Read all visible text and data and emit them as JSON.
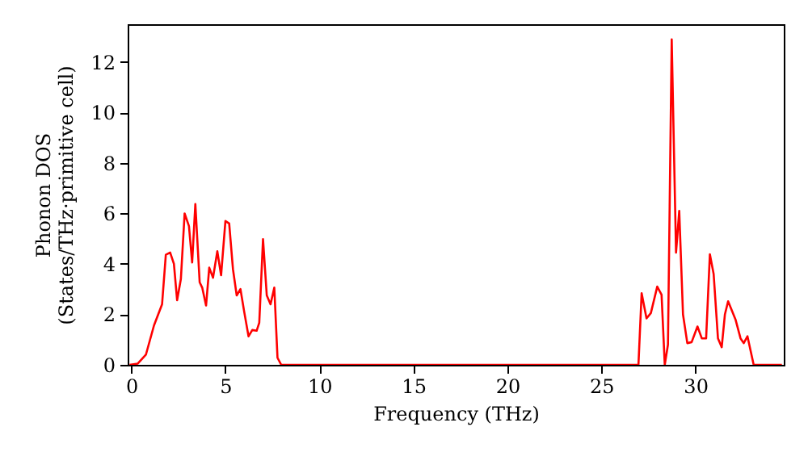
{
  "chart_data": {
    "type": "line",
    "xlabel": "Frequency (THz)",
    "ylabel": "Phonon DOS\n(States/THz·primitive cell)",
    "x": [
      -0.1,
      0.34,
      0.77,
      1.2,
      1.63,
      1.83,
      2.06,
      2.26,
      2.43,
      2.63,
      2.83,
      3.06,
      3.23,
      3.4,
      3.63,
      3.77,
      3.97,
      4.14,
      4.34,
      4.57,
      4.77,
      5.0,
      5.2,
      5.4,
      5.6,
      5.8,
      6.0,
      6.23,
      6.43,
      6.66,
      6.8,
      7.0,
      7.2,
      7.4,
      7.6,
      7.77,
      7.97,
      26.97,
      27.14,
      27.4,
      27.63,
      27.97,
      28.2,
      28.37,
      28.54,
      28.74,
      28.97,
      29.14,
      29.34,
      29.57,
      29.8,
      30.11,
      30.34,
      30.57,
      30.77,
      30.97,
      31.2,
      31.4,
      31.57,
      31.74,
      32.14,
      32.4,
      32.57,
      32.77,
      33.1,
      34.6
    ],
    "series": [
      {
        "color": "#ff0000",
        "values": [
          0,
          0.05,
          0.4,
          1.56,
          2.4,
          4.36,
          4.45,
          4.0,
          2.56,
          3.4,
          6.0,
          5.5,
          4.06,
          6.37,
          3.27,
          3.05,
          2.35,
          3.85,
          3.45,
          4.5,
          3.55,
          5.7,
          5.6,
          3.8,
          2.75,
          3.0,
          2.1,
          1.13,
          1.38,
          1.35,
          1.67,
          4.98,
          2.75,
          2.4,
          3.06,
          0.28,
          0,
          0,
          2.84,
          1.84,
          2.05,
          3.1,
          2.78,
          0,
          0.8,
          12.9,
          4.45,
          6.1,
          2.0,
          0.86,
          0.9,
          1.52,
          1.05,
          1.05,
          4.38,
          3.6,
          1.05,
          0.7,
          2.0,
          2.52,
          1.78,
          1.05,
          0.86,
          1.13,
          0,
          0
        ]
      }
    ],
    "xlim": [
      -0.2,
      34.7
    ],
    "ylim": [
      0,
      13.5
    ],
    "xticks": [
      0,
      5,
      10,
      15,
      20,
      25,
      30
    ],
    "yticks": [
      0,
      2,
      4,
      6,
      8,
      10,
      12
    ],
    "grid": false,
    "legend": false,
    "marker": "none",
    "line_style": "solid"
  }
}
